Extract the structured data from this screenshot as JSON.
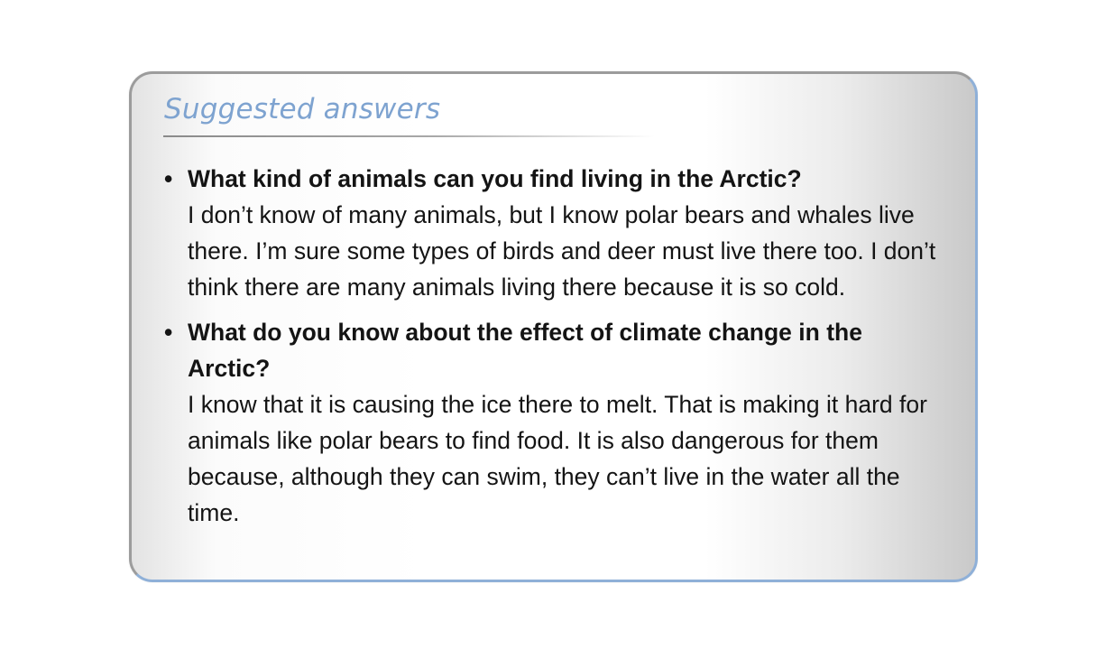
{
  "card": {
    "heading": "Suggested answers",
    "items": [
      {
        "question": "What kind of animals can you find living in the Arctic?",
        "answer": "I don’t know of many animals, but I know polar bears and whales live there. I’m sure some types of birds and deer must live there too. I don’t think there are many animals living there because it is so cold."
      },
      {
        "question": "What do you know about the effect of climate change in the Arctic?",
        "answer": "I know that it is causing the ice there to melt. That is making it hard for animals like polar bears to find food. It is also dangerous for them because, although they can swim, they can’t live in the water all the time."
      }
    ]
  },
  "colors": {
    "heading": "#7ea3d0",
    "border_blue": "#8fb0d8",
    "border_gray": "#9c9c9c",
    "text": "#141414"
  },
  "icons": {
    "bullet": "bullet-icon"
  }
}
